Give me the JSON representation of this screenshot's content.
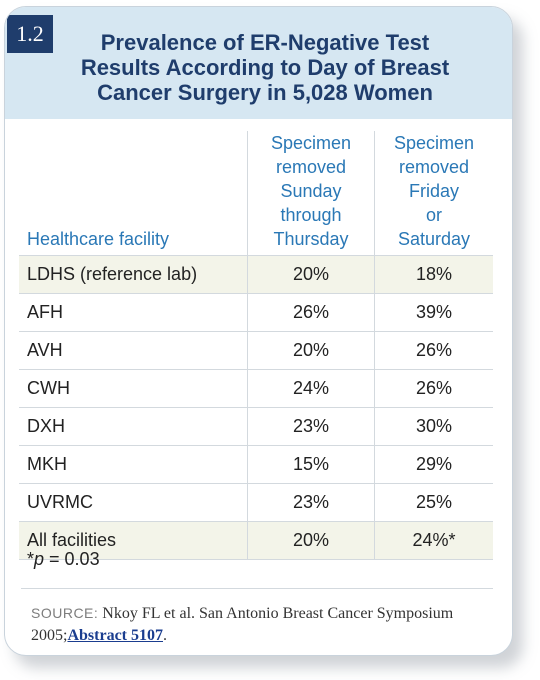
{
  "badge": "1.2",
  "title": "Prevalence of ER-Negative Test\nResults According to Day of Breast\nCancer Surgery in 5,028 Women",
  "table": {
    "headers": {
      "facility": "Healthcare facility",
      "col1": "Specimen\nremoved\nSunday\nthrough\nThursday",
      "col2": "Specimen\nremoved\nFriday\nor\nSaturday"
    },
    "rows": [
      {
        "facility": "LDHS (reference lab)",
        "col1": "20%",
        "col2": "18%"
      },
      {
        "facility": "AFH",
        "col1": "26%",
        "col2": "39%"
      },
      {
        "facility": "AVH",
        "col1": "20%",
        "col2": "26%"
      },
      {
        "facility": "CWH",
        "col1": "24%",
        "col2": "26%"
      },
      {
        "facility": "DXH",
        "col1": "23%",
        "col2": "30%"
      },
      {
        "facility": "MKH",
        "col1": "15%",
        "col2": "29%"
      },
      {
        "facility": "UVRMC",
        "col1": "23%",
        "col2": "25%"
      },
      {
        "facility": "All facilities",
        "col1": "20%",
        "col2": "24%*"
      }
    ]
  },
  "footnote": {
    "prefix": "*",
    "variable": "p",
    "rest": " = 0.03"
  },
  "source": {
    "label": "SOURCE:",
    "text": " Nkoy FL et al. San Antonio Breast Cancer Symposium 2005;",
    "link": "Abstract 5107",
    "end": "."
  },
  "colors": {
    "navy": "#1f3d6c",
    "header_bg": "#d6e7f2",
    "header_text": "#2a78b6",
    "shaded_row": "#f3f4e9",
    "link": "#1a3d8f"
  }
}
